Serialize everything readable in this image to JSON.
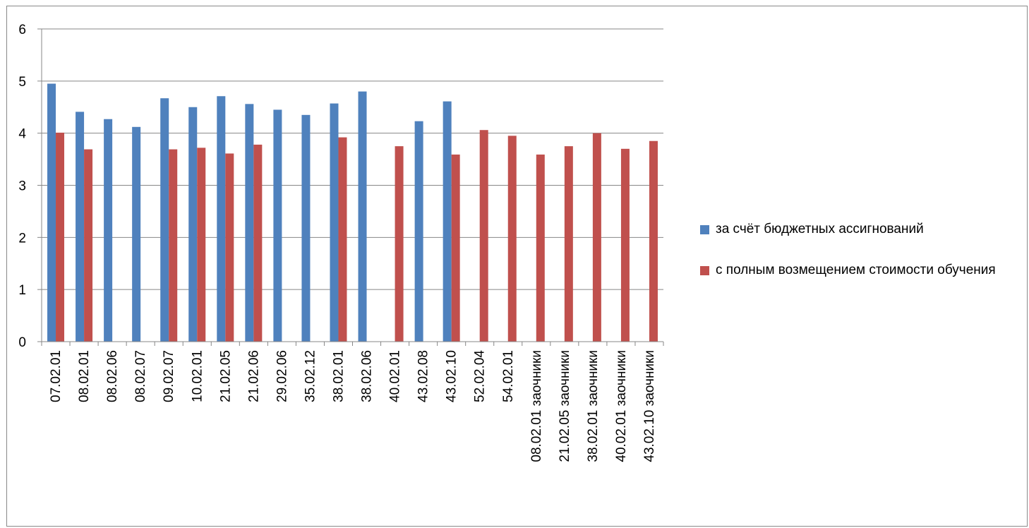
{
  "chart_data": {
    "type": "bar",
    "title": "",
    "xlabel": "",
    "ylabel": "",
    "ylim": [
      0,
      6
    ],
    "yticks": [
      "0",
      "1",
      "2",
      "3",
      "4",
      "5",
      "6"
    ],
    "grid": true,
    "legend_position": "right",
    "categories": [
      "07.02.01",
      "08.02.01",
      "08.02.06",
      "08.02.07",
      "09.02.07",
      "10.02.01",
      "21.02.05",
      "21.02.06",
      "29.02.06",
      "35.02.12",
      "38.02.01",
      "38.02.06",
      "40.02.01",
      "43.02.08",
      "43.02.10",
      "52.02.04",
      "54.02.01",
      "08.02.01 заочники",
      "21.02.05 заочники",
      "38.02.01 заочники",
      "40.02.01 заочники",
      "43.02.10 заочники"
    ],
    "series": [
      {
        "name": "за счёт бюджетных ассигнований",
        "color": "#4f81bd",
        "values": [
          4.95,
          4.41,
          4.27,
          4.12,
          4.67,
          4.5,
          4.71,
          4.56,
          4.45,
          4.35,
          4.57,
          4.8,
          null,
          4.23,
          4.61,
          null,
          null,
          null,
          null,
          null,
          null,
          null
        ]
      },
      {
        "name": "с полным возмещением стоимости обучения",
        "color": "#c0504d",
        "values": [
          4.01,
          3.69,
          null,
          null,
          3.69,
          3.72,
          3.61,
          3.78,
          null,
          null,
          3.92,
          null,
          3.75,
          null,
          3.59,
          4.06,
          3.95,
          3.59,
          3.75,
          4.0,
          3.7,
          3.85
        ]
      }
    ]
  }
}
